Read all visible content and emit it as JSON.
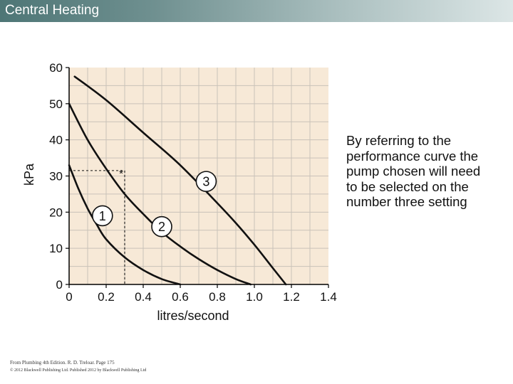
{
  "header": {
    "title": "Central Heating"
  },
  "chart_data": {
    "type": "line",
    "xlabel": "litres/second",
    "ylabel": "kPa",
    "xlim": [
      0,
      1.4
    ],
    "ylim": [
      0,
      60
    ],
    "xticks": [
      0,
      0.2,
      0.4,
      0.6,
      0.8,
      1.0,
      1.2,
      1.4
    ],
    "xtick_labels": [
      "0",
      "0.2",
      "0.4",
      "0.6",
      "0.8",
      "1.0",
      "1.2",
      "1.4"
    ],
    "yticks": [
      0,
      10,
      20,
      30,
      40,
      50,
      60
    ],
    "ytick_labels": [
      "0",
      "10",
      "20",
      "30",
      "40",
      "50",
      "60"
    ],
    "grid": true,
    "series": [
      {
        "name": "1",
        "x": [
          0,
          0.05,
          0.1,
          0.15,
          0.2,
          0.3,
          0.4,
          0.5,
          0.6
        ],
        "y": [
          33,
          26.5,
          21,
          16.5,
          12.5,
          7.5,
          4,
          1.5,
          0
        ]
      },
      {
        "name": "2",
        "x": [
          0,
          0.1,
          0.2,
          0.3,
          0.4,
          0.5,
          0.6,
          0.7,
          0.8,
          0.9,
          0.98
        ],
        "y": [
          50,
          40,
          32,
          25,
          19.5,
          14.5,
          10.5,
          7,
          4,
          1.5,
          0
        ]
      },
      {
        "name": "3",
        "x": [
          0.03,
          0.2,
          0.4,
          0.6,
          0.8,
          0.9,
          1.0,
          1.1,
          1.17
        ],
        "y": [
          57.5,
          51,
          42,
          33,
          22.5,
          17,
          11,
          4.5,
          0
        ]
      }
    ],
    "series_label_positions": [
      {
        "x": 0.18,
        "y": 19
      },
      {
        "x": 0.5,
        "y": 16
      },
      {
        "x": 0.74,
        "y": 28.5
      }
    ],
    "operating_point": {
      "x": 0.3,
      "y": 31.5,
      "marker": "*"
    }
  },
  "side_text": [
    "By referring to the",
    "performance curve the",
    "pump chosen will need",
    "to be selected on the",
    "number three setting"
  ],
  "footer": {
    "line1": "From Plumbing 4th Edition. R. D. Treloar. Page 175",
    "line2": "© 2012 Blackwell Publishing Ltd. Published 2012 by Blackwell Publishing Ltd"
  }
}
